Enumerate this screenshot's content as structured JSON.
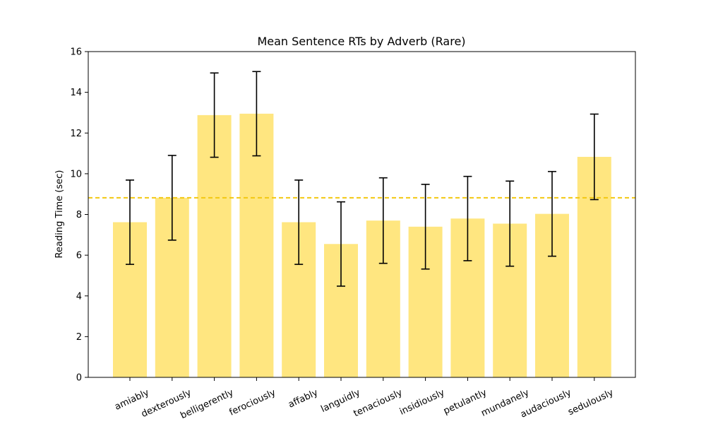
{
  "chart_data": {
    "type": "bar",
    "title": "Mean Sentence RTs by Adverb (Rare)",
    "xlabel": "",
    "ylabel": "Reading Time (sec)",
    "ylim": [
      0,
      16
    ],
    "yticks": [
      0,
      2,
      4,
      6,
      8,
      10,
      12,
      14,
      16
    ],
    "categories": [
      "amiably",
      "dexterously",
      "belligerently",
      "ferociously",
      "affably",
      "languidly",
      "tenaciously",
      "insidiously",
      "petulantly",
      "mundanely",
      "audaciously",
      "sedulously"
    ],
    "values": [
      7.62,
      8.82,
      12.88,
      12.95,
      7.62,
      6.55,
      7.7,
      7.4,
      7.8,
      7.55,
      8.03,
      10.83
    ],
    "errors": [
      2.07,
      2.08,
      2.07,
      2.07,
      2.07,
      2.07,
      2.1,
      2.08,
      2.07,
      2.09,
      2.08,
      2.1
    ],
    "reference_line": 8.82,
    "grid": false,
    "colors": {
      "bar": "#ffe680",
      "error_bar": "#000000",
      "reference_line": "#f2c811",
      "axis": "#000000"
    }
  }
}
